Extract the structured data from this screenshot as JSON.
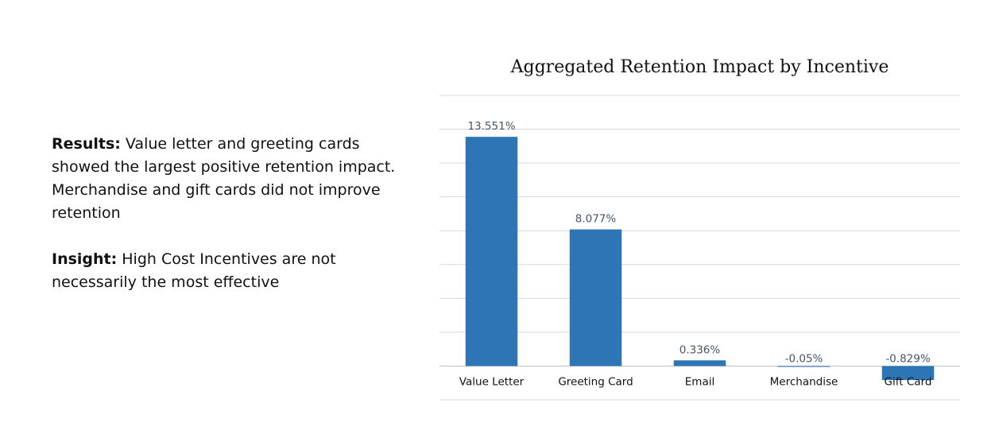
{
  "text_panel": {
    "results_label": "Results:",
    "results_text": " Value letter and greeting cards showed the largest positive retention impact. Merchandise and gift cards did not improve retention",
    "insight_label": "Insight:",
    "insight_text": " High Cost Incentives are not necessarily the most effective"
  },
  "chart_data": {
    "type": "bar",
    "title": "Aggregated Retention Impact by Incentive",
    "categories": [
      "Value Letter",
      "Greeting Card",
      "Email",
      "Merchandise",
      "Gift Card"
    ],
    "values": [
      13.551,
      8.077,
      0.336,
      -0.05,
      -0.829
    ],
    "data_labels": [
      "13.551%",
      "8.077%",
      "0.336%",
      "-0.05%",
      "-0.829%"
    ],
    "unit": "%",
    "ylim": [
      -2,
      16
    ],
    "grid": true,
    "legend": "none",
    "colors": {
      "bar": "#2e75b6",
      "grid": "#d9d9d9",
      "axis": "#bfbfbf",
      "label": "#44546a"
    }
  }
}
